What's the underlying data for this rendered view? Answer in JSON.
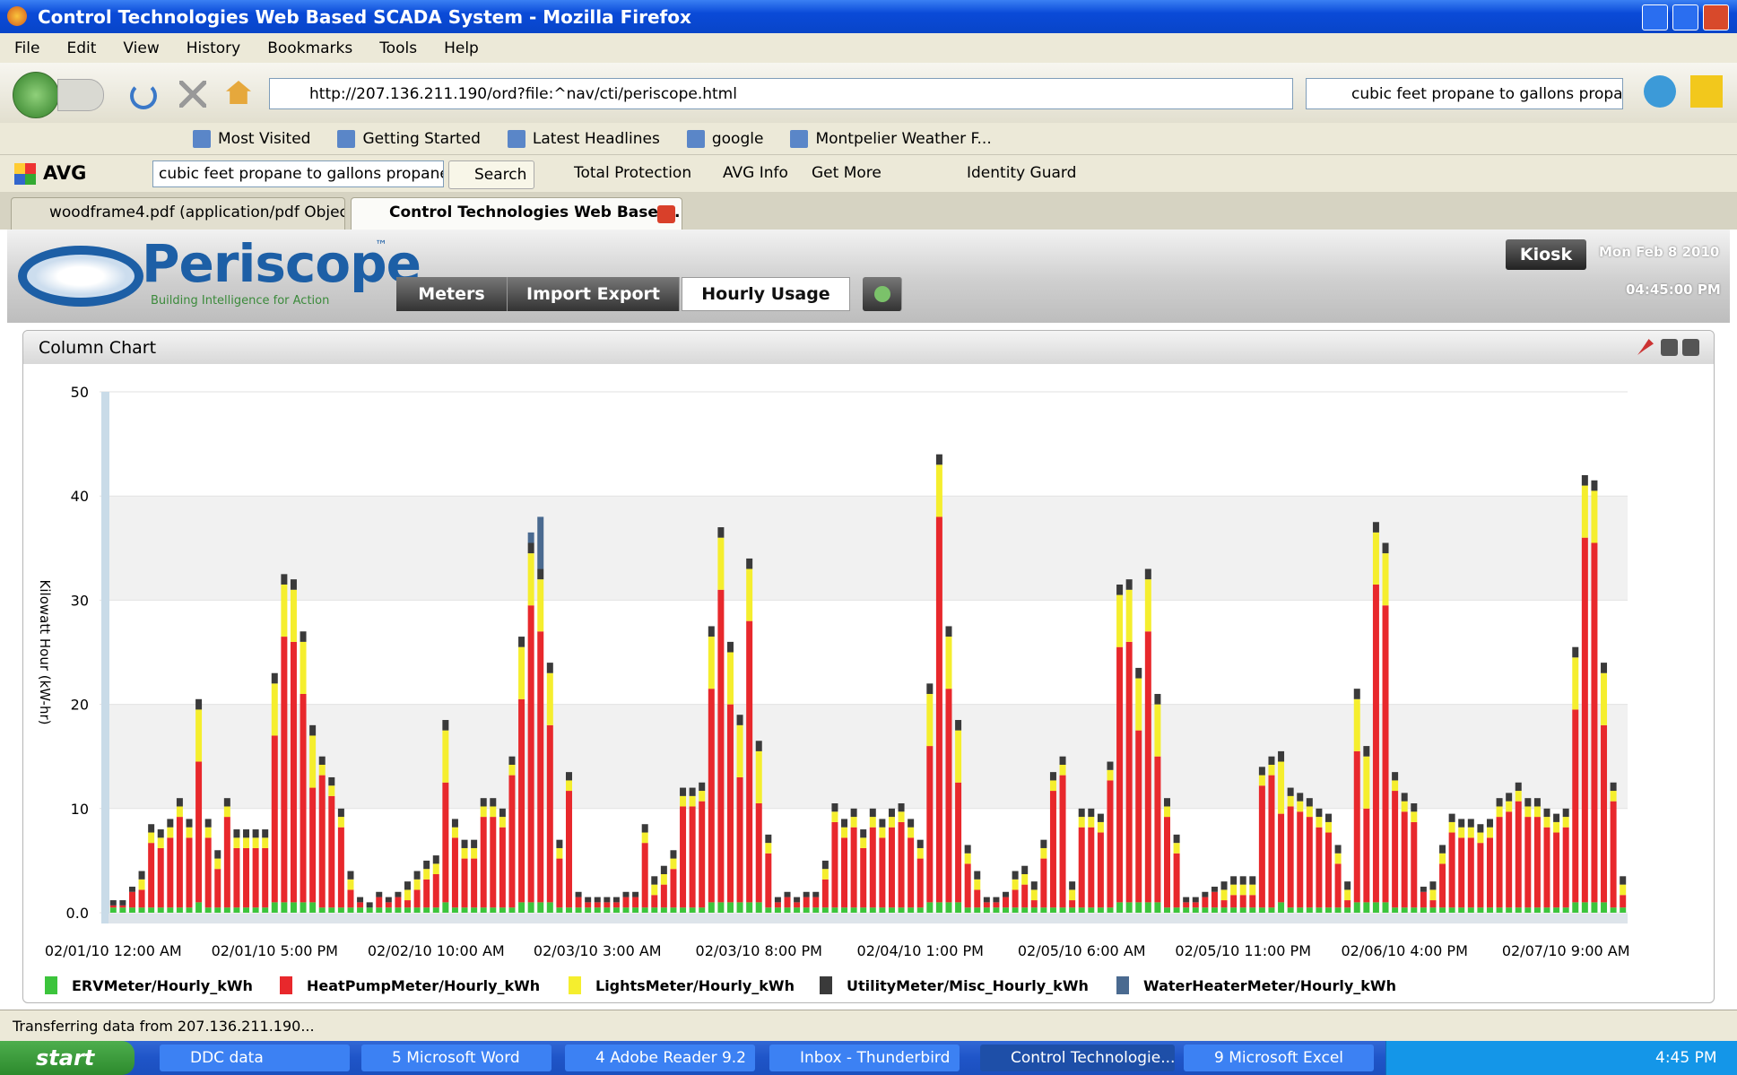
{
  "window": {
    "title": "Control Technologies Web Based SCADA System - Mozilla Firefox",
    "menu": [
      "File",
      "Edit",
      "View",
      "History",
      "Bookmarks",
      "Tools",
      "Help"
    ],
    "url": "http://207.136.211.190/ord?file:^nav/cti/periscope.html",
    "search": "cubic feet propane to gallons propane"
  },
  "bookmarks": [
    "Most Visited",
    "Getting Started",
    "Latest Headlines",
    "google",
    "Montpelier Weather F..."
  ],
  "toolbar": {
    "brand": "AVG",
    "search_text": "cubic feet propane to gallons propane",
    "search_button": "Search",
    "items": [
      "Total Protection",
      "AVG Info",
      "Get More",
      "Identity Guard"
    ]
  },
  "tabs": [
    "woodframe4.pdf (application/pdf Object)",
    "Control Technologies Web Based ..."
  ],
  "app": {
    "logo": "Periscope",
    "trademark": "™",
    "tagline": "Building Intelligence for Action",
    "nav": [
      "Meters",
      "Import Export",
      "Hourly Usage"
    ],
    "kiosk": "Kiosk",
    "date": "Mon Feb 8 2010",
    "time": "04:45:00 PM",
    "panel_title": "Column Chart"
  },
  "status": "Transferring data from 207.136.211.190...",
  "taskbar": {
    "start": "start",
    "items": [
      "DDC data",
      "5 Microsoft Word",
      "4 Adobe Reader 9.2",
      "Inbox - Thunderbird",
      "Control Technologie...",
      "9 Microsoft Excel"
    ],
    "clock": "4:45 PM"
  },
  "chart_data": {
    "type": "stacked_bar",
    "y_label": "Kilowatt Hour (kW-hr)",
    "ylim": [
      0,
      50
    ],
    "yticks": [
      {
        "value": 0,
        "label": "0.0"
      },
      10,
      20,
      30,
      40,
      50
    ],
    "grid": true,
    "legend": "bottom",
    "categories": [
      "02/01/10 12:00 AM",
      null,
      null,
      null,
      null,
      null,
      null,
      null,
      null,
      null,
      null,
      null,
      null,
      null,
      null,
      null,
      null,
      "02/01/10 5:00 PM",
      null,
      null,
      null,
      null,
      null,
      null,
      null,
      null,
      null,
      null,
      null,
      null,
      null,
      null,
      null,
      null,
      "02/02/10 10:00 AM",
      null,
      null,
      null,
      null,
      null,
      null,
      null,
      null,
      null,
      null,
      null,
      null,
      null,
      null,
      null,
      null,
      "02/03/10 3:00 AM",
      null,
      null,
      null,
      null,
      null,
      null,
      null,
      null,
      null,
      null,
      null,
      null,
      null,
      null,
      null,
      null,
      "02/03/10 8:00 PM",
      null,
      null,
      null,
      null,
      null,
      null,
      null,
      null,
      null,
      null,
      null,
      null,
      null,
      null,
      null,
      null,
      "02/04/10 1:00 PM",
      null,
      null,
      null,
      null,
      null,
      null,
      null,
      null,
      null,
      null,
      null,
      null,
      null,
      null,
      null,
      null,
      "02/05/10 6:00 AM",
      null,
      null,
      null,
      null,
      null,
      null,
      null,
      null,
      null,
      null,
      null,
      null,
      null,
      null,
      null,
      null,
      "02/05/10 11:00 PM",
      null,
      null,
      null,
      null,
      null,
      null,
      null,
      null,
      null,
      null,
      null,
      null,
      null,
      null,
      null,
      null,
      "02/06/10 4:00 PM",
      null,
      null,
      null,
      null,
      null,
      null,
      null,
      null,
      null,
      null,
      null,
      null,
      null,
      null,
      null,
      null,
      "02/07/10 9:00 AM",
      null,
      null,
      null,
      null,
      null,
      null
    ],
    "series": [
      {
        "name": "ERVMeter/Hourly_kWh",
        "color": "#3cc43c",
        "values": [
          0.5,
          0.5,
          0.5,
          0.5,
          0.5,
          0.5,
          0.5,
          0.5,
          0.5,
          1,
          0.5,
          0.5,
          0.5,
          0.5,
          0.5,
          0.5,
          0.5,
          1,
          1,
          1,
          1,
          1,
          0.5,
          0.5,
          0.5,
          0.5,
          0.5,
          0.5,
          0.5,
          0.5,
          0.5,
          0.5,
          0.5,
          0.5,
          0.5,
          1,
          0.5,
          0.5,
          0.5,
          0.5,
          0.5,
          0.5,
          0.5,
          1,
          1,
          1,
          1,
          0.5,
          0.5,
          0.5,
          0.5,
          0.5,
          0.5,
          0.5,
          0.5,
          0.5,
          0.5,
          0.5,
          0.5,
          0.5,
          0.5,
          0.5,
          0.5,
          1,
          1,
          1,
          1,
          1,
          1,
          0.5,
          0.5,
          0.5,
          0.5,
          0.5,
          0.5,
          0.5,
          0.5,
          0.5,
          0.5,
          0.5,
          0.5,
          0.5,
          0.5,
          0.5,
          0.5,
          0.5,
          1,
          1,
          1,
          1,
          0.5,
          0.5,
          0.5,
          0.5,
          0.5,
          0.5,
          0.5,
          0.5,
          0.5,
          0.5,
          0.5,
          0.5,
          0.5,
          0.5,
          0.5,
          0.5,
          1,
          1,
          1,
          1,
          1,
          0.5,
          0.5,
          0.5,
          0.5,
          0.5,
          0.5,
          0.5,
          0.5,
          0.5,
          0.5,
          0.5,
          0.5,
          1,
          0.5,
          0.5,
          0.5,
          0.5,
          0.5,
          0.5,
          0.5,
          1,
          1,
          1,
          1,
          0.5,
          0.5,
          0.5,
          0.5,
          0.5,
          0.5,
          0.5,
          0.5,
          0.5,
          0.5,
          0.5,
          0.5,
          0.5,
          0.5,
          0.5,
          0.5,
          0.5,
          0.5,
          0.5,
          1,
          1,
          1,
          1,
          0.5,
          0.5
        ]
      },
      {
        "name": "HeatPumpMeter/Hourly_kWh",
        "color": "#e8282c",
        "values": [
          0.2,
          0.2,
          1.5,
          1.7,
          6.2,
          5.7,
          6.7,
          8.7,
          6.7,
          13.5,
          6.7,
          3.7,
          8.7,
          5.7,
          5.7,
          5.7,
          5.7,
          16,
          25.5,
          25,
          20,
          11,
          12.7,
          10.7,
          7.7,
          1.7,
          0.5,
          0,
          1,
          0.5,
          1,
          0.7,
          1.7,
          2.7,
          3.2,
          11.5,
          6.7,
          4.7,
          4.7,
          8.7,
          8.7,
          7.7,
          12.7,
          19.5,
          28.5,
          26,
          17,
          4.7,
          11.2,
          1,
          0.5,
          0.5,
          0.5,
          0.5,
          1,
          1,
          6.2,
          1.2,
          2.2,
          3.7,
          9.7,
          9.7,
          10.2,
          20.5,
          30,
          19,
          12,
          27,
          9.5,
          5.2,
          0.5,
          1,
          0.5,
          1,
          1,
          2.7,
          8.2,
          6.7,
          7.7,
          5.7,
          7.7,
          6.7,
          7.7,
          8.2,
          6.7,
          4.7,
          15,
          37,
          20.5,
          11.5,
          4.2,
          1.7,
          0.5,
          0.5,
          1,
          1.7,
          2.2,
          0.7,
          4.7,
          11.2,
          12.7,
          0.7,
          7.7,
          7.7,
          7.2,
          12.2,
          24.5,
          25,
          16.5,
          26,
          14,
          8.7,
          5.2,
          0.5,
          0.5,
          1,
          1.5,
          0.7,
          1.2,
          1.2,
          1.2,
          11.7,
          12.7,
          8.5,
          9.7,
          9.2,
          8.7,
          7.7,
          7.2,
          4.2,
          0.7,
          14.5,
          9,
          30.5,
          28.5,
          11.2,
          9.2,
          8.2,
          1.5,
          0.7,
          4.2,
          7.2,
          6.7,
          6.7,
          6.2,
          6.7,
          8.7,
          9.2,
          10.2,
          8.7,
          8.7,
          7.7,
          7.2,
          7.7,
          18.5,
          35,
          34.5,
          17,
          10.2,
          1.2
        ]
      },
      {
        "name": "LightsMeter/Hourly_kWh",
        "color": "#f5ee2e",
        "values": [
          0,
          0,
          0,
          1,
          1,
          1,
          1,
          1,
          1,
          5,
          1,
          1,
          1,
          1,
          1,
          1,
          1,
          5,
          5,
          5,
          5,
          5,
          1,
          1,
          1,
          1,
          0,
          0,
          0,
          0,
          0,
          1,
          1,
          1,
          1,
          5,
          1,
          1,
          1,
          1,
          1,
          1,
          1,
          5,
          5,
          5,
          5,
          1,
          1,
          0,
          0,
          0,
          0,
          0,
          0,
          0,
          1,
          1,
          1,
          1,
          1,
          1,
          1,
          5,
          5,
          5,
          5,
          5,
          5,
          1,
          0,
          0,
          0,
          0,
          0,
          1,
          1,
          1,
          1,
          1,
          1,
          1,
          1,
          1,
          1,
          1,
          5,
          5,
          5,
          5,
          1,
          1,
          0,
          0,
          0,
          1,
          1,
          1,
          1,
          1,
          1,
          1,
          1,
          1,
          1,
          1,
          5,
          5,
          5,
          5,
          5,
          1,
          1,
          0,
          0,
          0,
          0,
          1,
          1,
          1,
          1,
          1,
          1,
          5,
          1,
          1,
          1,
          1,
          1,
          1,
          1,
          5,
          5,
          5,
          5,
          1,
          1,
          1,
          0,
          1,
          1,
          1,
          1,
          1,
          1,
          1,
          1,
          1,
          1,
          1,
          1,
          1,
          1,
          1,
          5,
          5,
          5,
          5,
          1,
          1
        ]
      },
      {
        "name": "UtilityMeter/Misc_Hourly_kWh",
        "color": "#3a3a3a",
        "values": [
          0.5,
          0.5,
          0.5,
          0.8,
          0.8,
          0.8,
          0.8,
          0.8,
          0.8,
          1,
          0.8,
          0.8,
          0.8,
          0.8,
          0.8,
          0.8,
          0.8,
          1,
          1,
          1,
          1,
          1,
          0.8,
          0.8,
          0.8,
          0.8,
          0.5,
          0.5,
          0.5,
          0.5,
          0.5,
          0.8,
          0.8,
          0.8,
          0.8,
          1,
          0.8,
          0.8,
          0.8,
          0.8,
          0.8,
          0.8,
          0.8,
          1,
          1,
          1,
          1,
          0.8,
          0.8,
          0.5,
          0.5,
          0.5,
          0.5,
          0.5,
          0.5,
          0.5,
          0.8,
          0.8,
          0.8,
          0.8,
          0.8,
          0.8,
          0.8,
          1,
          1,
          1,
          1,
          1,
          1,
          0.8,
          0.5,
          0.5,
          0.5,
          0.5,
          0.5,
          0.8,
          0.8,
          0.8,
          0.8,
          0.8,
          0.8,
          0.8,
          0.8,
          0.8,
          0.8,
          0.8,
          1,
          1,
          1,
          1,
          0.8,
          0.8,
          0.5,
          0.5,
          0.5,
          0.8,
          0.8,
          0.8,
          0.8,
          0.8,
          0.8,
          0.8,
          0.8,
          0.8,
          0.8,
          0.8,
          1,
          1,
          1,
          1,
          1,
          0.8,
          0.8,
          0.5,
          0.5,
          0.5,
          0.5,
          0.8,
          0.8,
          0.8,
          0.8,
          0.8,
          0.8,
          1,
          0.8,
          0.8,
          0.8,
          0.8,
          0.8,
          0.8,
          0.8,
          1,
          1,
          1,
          1,
          0.8,
          0.8,
          0.8,
          0.5,
          0.8,
          0.8,
          0.8,
          0.8,
          0.8,
          0.8,
          0.8,
          0.8,
          0.8,
          0.8,
          0.8,
          0.8,
          0.8,
          0.8,
          0.8,
          1,
          1,
          1,
          1,
          0.8,
          0.8
        ]
      },
      {
        "name": "WaterHeaterMeter/Hourly_kWh",
        "color": "#4a6a90",
        "values": [
          0,
          0,
          0,
          0,
          0,
          0,
          0,
          0,
          0,
          0,
          0,
          0,
          0,
          0,
          0,
          0,
          0,
          0,
          0,
          0,
          0,
          0,
          0,
          0,
          0,
          0,
          0,
          0,
          0,
          0,
          0,
          0,
          0,
          0,
          0,
          0,
          0,
          0,
          0,
          0,
          0,
          0,
          0,
          0,
          1,
          5,
          0,
          0,
          0,
          0,
          0,
          0,
          0,
          0,
          0,
          0,
          0,
          0,
          0,
          0,
          0,
          0,
          0,
          0,
          0,
          0,
          0,
          0,
          0,
          0,
          0,
          0,
          0,
          0,
          0,
          0,
          0,
          0,
          0,
          0,
          0,
          0,
          0,
          0,
          0,
          0,
          0,
          0,
          0,
          0,
          0,
          0,
          0,
          0,
          0,
          0,
          0,
          0,
          0,
          0,
          0,
          0,
          0,
          0,
          0,
          0,
          0,
          0,
          0,
          0,
          0,
          0,
          0,
          0,
          0,
          0,
          0,
          0,
          0,
          0,
          0,
          0,
          0,
          0,
          0,
          0,
          0,
          0,
          0,
          0,
          0,
          0,
          0,
          0,
          0,
          0,
          0,
          0,
          0,
          0,
          0,
          0,
          0,
          0,
          0,
          0,
          0,
          0,
          0,
          0,
          0,
          0,
          0,
          0,
          0,
          0,
          0,
          0,
          0,
          0
        ]
      }
    ]
  }
}
